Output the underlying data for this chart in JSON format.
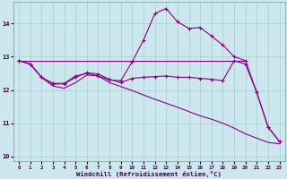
{
  "background_color": "#cce8ee",
  "grid_color": "#aaccd4",
  "line_color": "#880088",
  "xlabel": "Windchill (Refroidissement éolien,°C)",
  "xlim": [
    -0.5,
    23.5
  ],
  "ylim": [
    9.85,
    14.65
  ],
  "yticks": [
    10,
    11,
    12,
    13,
    14
  ],
  "xticks": [
    0,
    1,
    2,
    3,
    4,
    5,
    6,
    7,
    8,
    9,
    10,
    11,
    12,
    13,
    14,
    15,
    16,
    17,
    18,
    19,
    20,
    21,
    22,
    23
  ],
  "curve_high": {
    "x": [
      0,
      1,
      2,
      3,
      4,
      5,
      6,
      7,
      8,
      9,
      10,
      11,
      12,
      13,
      14,
      15,
      16,
      17,
      18,
      19,
      20,
      21,
      22,
      23
    ],
    "y": [
      12.88,
      12.78,
      12.38,
      12.2,
      12.2,
      12.42,
      12.5,
      12.42,
      12.3,
      12.28,
      12.85,
      13.5,
      14.3,
      14.45,
      14.05,
      13.85,
      13.88,
      13.62,
      13.35,
      13.0,
      12.88,
      11.92,
      10.88,
      10.45
    ]
  },
  "curve_flat_high": {
    "x": [
      0,
      1,
      2,
      3,
      4,
      5,
      6,
      7,
      8,
      9,
      10,
      11,
      12,
      13,
      14,
      15,
      16,
      17,
      18,
      19,
      20
    ],
    "y": [
      12.88,
      12.88,
      12.88,
      12.88,
      12.88,
      12.88,
      12.88,
      12.88,
      12.88,
      12.88,
      12.88,
      12.88,
      12.88,
      12.88,
      12.88,
      12.88,
      12.88,
      12.88,
      12.88,
      12.88,
      12.88
    ]
  },
  "curve_flat_low": {
    "x": [
      0,
      1,
      2,
      3,
      4,
      5,
      6,
      7,
      8,
      9,
      10,
      11,
      12,
      13,
      14,
      15,
      16,
      17,
      18,
      19,
      20,
      21,
      22,
      23
    ],
    "y": [
      12.88,
      12.78,
      12.38,
      12.18,
      12.18,
      12.38,
      12.52,
      12.48,
      12.32,
      12.22,
      12.35,
      12.38,
      12.4,
      12.42,
      12.38,
      12.38,
      12.35,
      12.32,
      12.28,
      12.88,
      12.78,
      11.92,
      10.88,
      10.45
    ]
  },
  "curve_diagonal": {
    "x": [
      0,
      1,
      2,
      3,
      4,
      5,
      6,
      7,
      8,
      9,
      10,
      11,
      12,
      13,
      14,
      15,
      16,
      17,
      18,
      19,
      20,
      21,
      22,
      23
    ],
    "y": [
      12.88,
      12.78,
      12.38,
      12.12,
      12.05,
      12.22,
      12.45,
      12.42,
      12.22,
      12.1,
      11.98,
      11.85,
      11.72,
      11.6,
      11.48,
      11.35,
      11.22,
      11.12,
      11.0,
      10.85,
      10.68,
      10.55,
      10.42,
      10.38
    ]
  }
}
